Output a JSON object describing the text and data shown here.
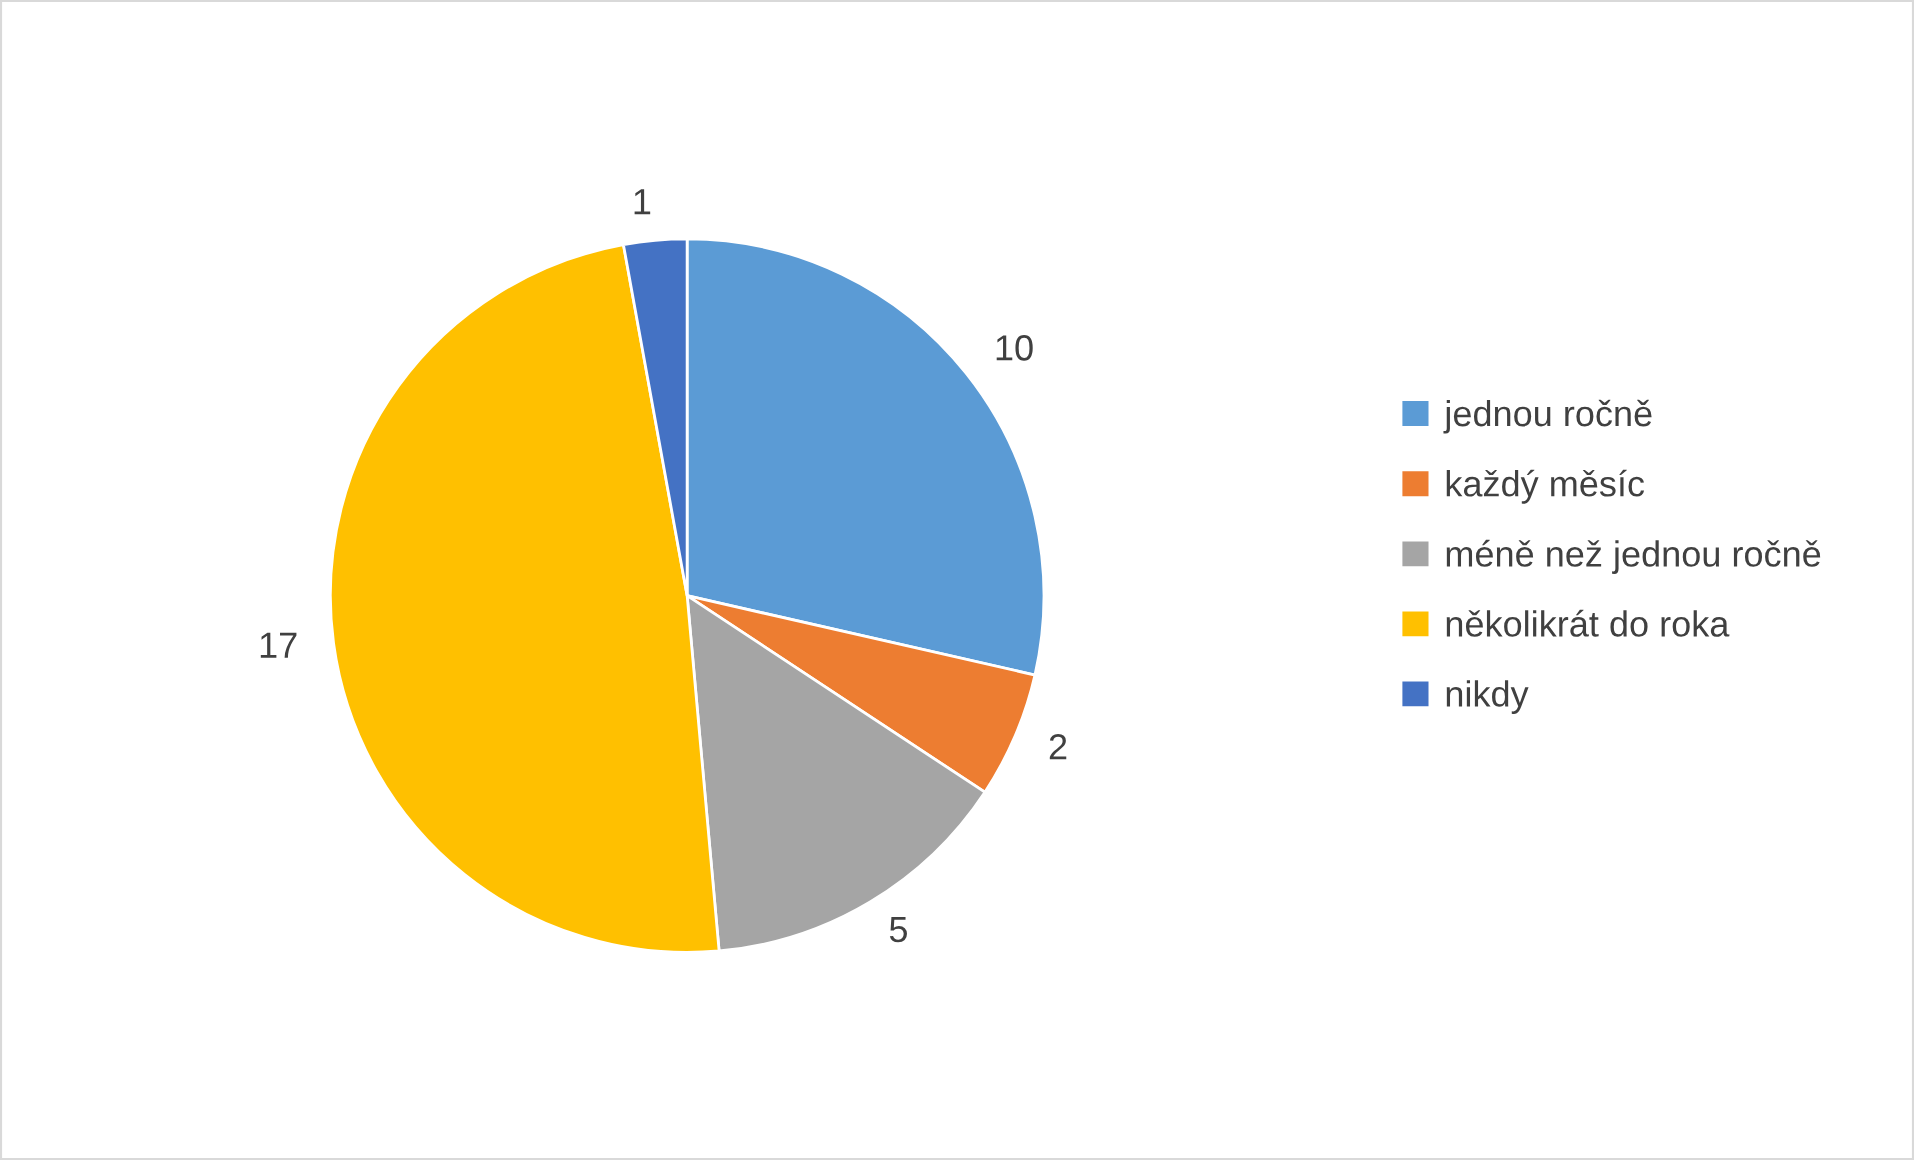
{
  "chart_data": {
    "type": "pie",
    "categories": [
      "jednou ročně",
      "každý měsíc",
      "méně než jednou ročně",
      "několikrát do roka",
      "nikdy"
    ],
    "values": [
      10,
      2,
      5,
      17,
      1
    ],
    "colors": [
      "#5b9bd5",
      "#ed7d31",
      "#a5a5a5",
      "#ffc000",
      "#4472c4"
    ],
    "data_labels": true,
    "legend": "right"
  }
}
